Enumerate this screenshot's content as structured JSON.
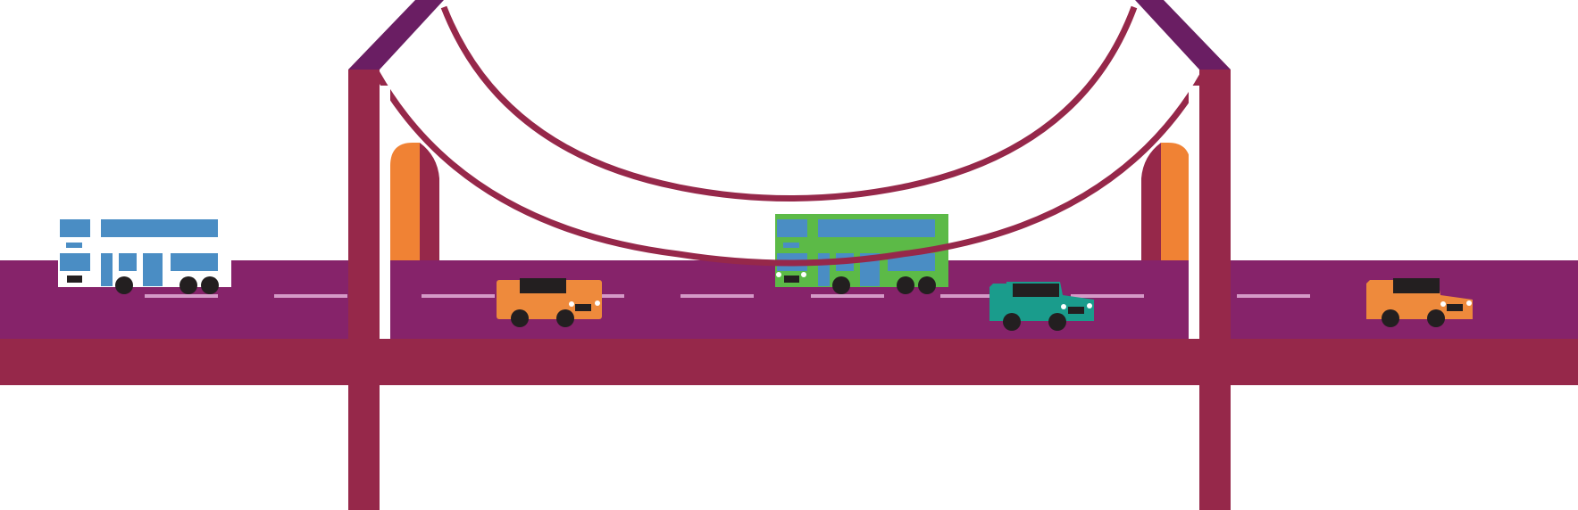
{
  "scene": {
    "subject": "suspension-bridge-with-traffic",
    "colors": {
      "deck": "#86236a",
      "deck_base": "#96284a",
      "tower": "#96284a",
      "tower_cap": "#6a1e63",
      "cable": "#96284a",
      "lane_marker": "#d59ac7",
      "arch_accent": "#f08234",
      "background": "#ffffff"
    },
    "vehicles": [
      {
        "kind": "double-decker-bus",
        "body_color": "#ffffff",
        "window_color": "#4a8dc4"
      },
      {
        "kind": "taxi-car",
        "body_color": "#ee8a3c",
        "roof_color": "#231f20"
      },
      {
        "kind": "double-decker-bus",
        "body_color": "#5cba47",
        "window_color": "#4a8dc4"
      },
      {
        "kind": "car",
        "body_color": "#1a9c8c",
        "roof_color": "#231f20"
      },
      {
        "kind": "taxi-car",
        "body_color": "#ee8a3c",
        "roof_color": "#231f20"
      }
    ]
  }
}
